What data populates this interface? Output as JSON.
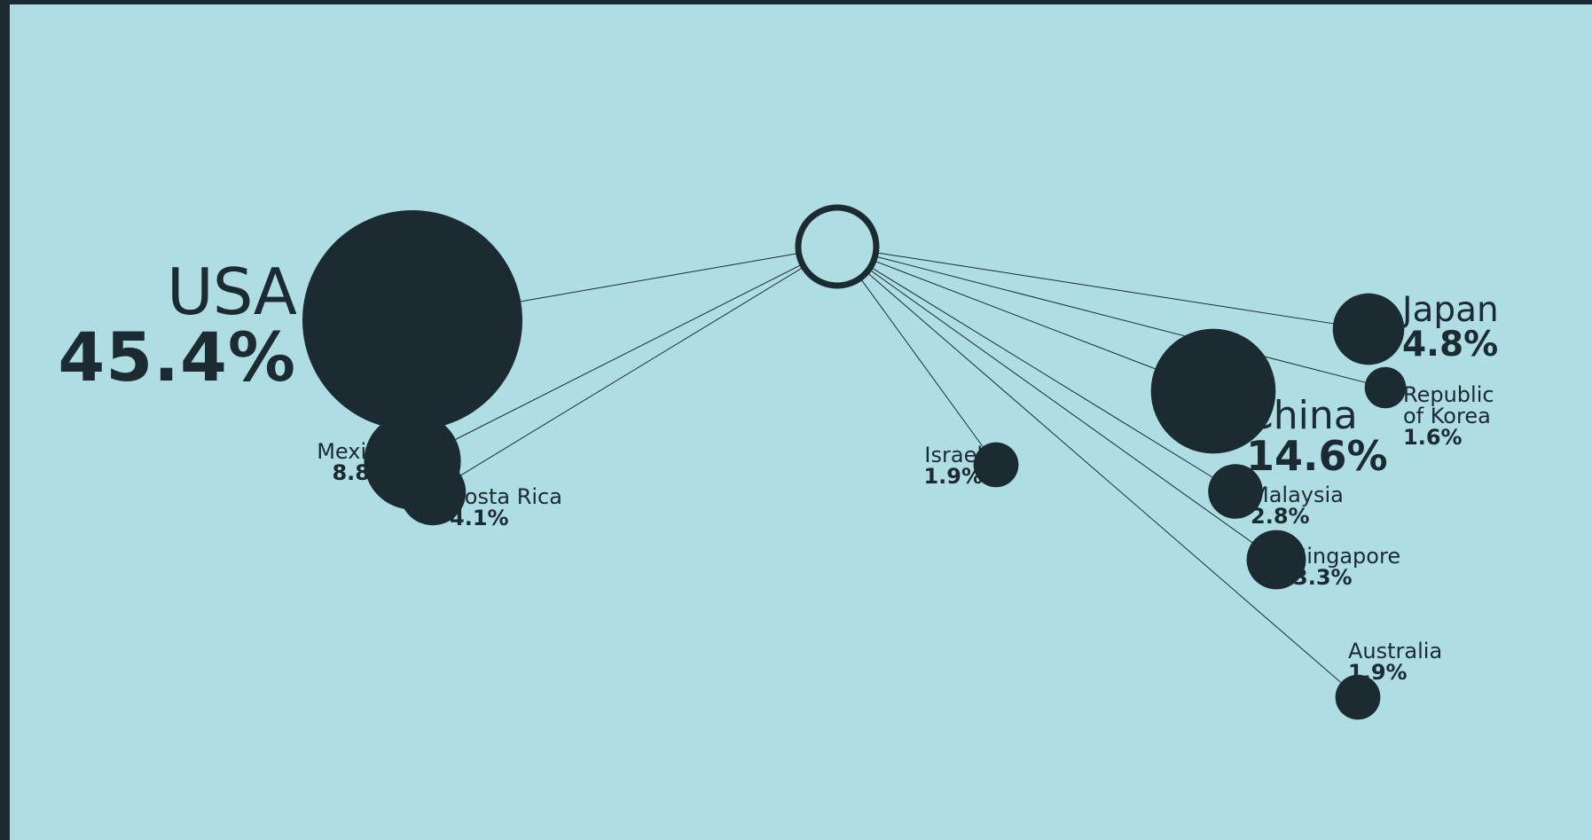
{
  "colors": {
    "background": "#aedee3",
    "foreground": "#1c2a31",
    "frame": "#1c2a31"
  },
  "countries": [
    {
      "id": "usa",
      "name": "USA",
      "pct_label": "45.4%",
      "value": 45.4
    },
    {
      "id": "china",
      "name": "China",
      "pct_label": "14.6%",
      "value": 14.6
    },
    {
      "id": "mexico",
      "name": "Mexico",
      "pct_label": "8.8%",
      "value": 8.8
    },
    {
      "id": "japan",
      "name": "Japan",
      "pct_label": "4.8%",
      "value": 4.8
    },
    {
      "id": "costa_rica",
      "name": "Costa Rica",
      "pct_label": "4.1%",
      "value": 4.1
    },
    {
      "id": "singapore",
      "name": "Singapore",
      "pct_label": "3.3%",
      "value": 3.3
    },
    {
      "id": "malaysia",
      "name": "Malaysia",
      "pct_label": "2.8%",
      "value": 2.8
    },
    {
      "id": "israel",
      "name": "Israel",
      "pct_label": "1.9%",
      "value": 1.9
    },
    {
      "id": "australia",
      "name": "Australia",
      "pct_label": "1.9%",
      "value": 1.9
    },
    {
      "id": "korea",
      "name_line1": "Republic",
      "name_line2": "of Korea",
      "pct_label": "1.6%",
      "value": 1.6
    }
  ]
}
